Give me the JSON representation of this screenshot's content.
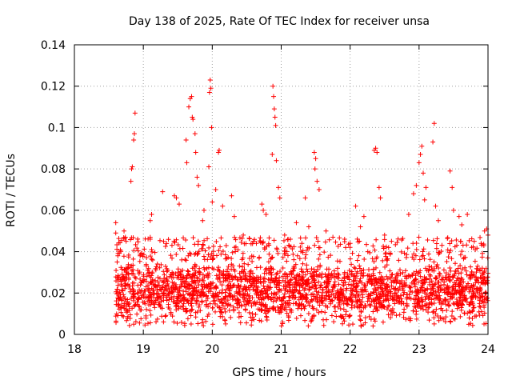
{
  "chart_data": {
    "type": "scatter",
    "title": "Day 138 of 2025, Rate Of TEC Index for receiver unsa",
    "xlabel": "GPS time / hours",
    "ylabel": "ROTI / TECUs",
    "xlim": [
      18,
      24
    ],
    "ylim": [
      0,
      0.14
    ],
    "x_ticks": [
      18,
      19,
      20,
      21,
      22,
      23,
      24
    ],
    "x_tick_labels": [
      "18",
      "19",
      "20",
      "21",
      "22",
      "23",
      "24"
    ],
    "y_ticks": [
      0,
      0.02,
      0.04,
      0.06,
      0.08,
      0.1,
      0.12,
      0.14
    ],
    "y_tick_labels": [
      "0",
      "0.02",
      "0.04",
      "0.06",
      "0.08",
      "0.1",
      "0.12",
      "0.14"
    ],
    "grid": true,
    "marker": "+",
    "color": "#ff0000",
    "series": [
      {
        "name": "ROTI",
        "approximate": true,
        "points": [
          [
            18.6,
            0.054
          ],
          [
            18.6,
            0.049
          ],
          [
            18.62,
            0.035
          ],
          [
            18.63,
            0.038
          ],
          [
            18.72,
            0.05
          ],
          [
            18.74,
            0.047
          ],
          [
            18.75,
            0.045
          ],
          [
            18.82,
            0.074
          ],
          [
            18.83,
            0.08
          ],
          [
            18.84,
            0.081
          ],
          [
            18.86,
            0.094
          ],
          [
            18.87,
            0.097
          ],
          [
            18.88,
            0.107
          ],
          [
            19.1,
            0.055
          ],
          [
            19.12,
            0.058
          ],
          [
            19.1,
            0.046
          ],
          [
            19.12,
            0.041
          ],
          [
            19.28,
            0.069
          ],
          [
            19.45,
            0.067
          ],
          [
            19.48,
            0.066
          ],
          [
            19.52,
            0.063
          ],
          [
            19.62,
            0.094
          ],
          [
            19.63,
            0.083
          ],
          [
            19.66,
            0.11
          ],
          [
            19.68,
            0.114
          ],
          [
            19.7,
            0.115
          ],
          [
            19.71,
            0.105
          ],
          [
            19.72,
            0.104
          ],
          [
            19.75,
            0.097
          ],
          [
            19.76,
            0.088
          ],
          [
            19.78,
            0.076
          ],
          [
            19.8,
            0.072
          ],
          [
            19.86,
            0.055
          ],
          [
            19.88,
            0.06
          ],
          [
            19.95,
            0.081
          ],
          [
            19.96,
            0.117
          ],
          [
            19.97,
            0.123
          ],
          [
            19.98,
            0.119
          ],
          [
            19.99,
            0.1
          ],
          [
            20.0,
            0.064
          ],
          [
            20.05,
            0.07
          ],
          [
            20.09,
            0.088
          ],
          [
            20.1,
            0.089
          ],
          [
            20.15,
            0.062
          ],
          [
            20.28,
            0.067
          ],
          [
            20.32,
            0.057
          ],
          [
            20.45,
            0.048
          ],
          [
            20.6,
            0.045
          ],
          [
            20.72,
            0.063
          ],
          [
            20.74,
            0.06
          ],
          [
            20.78,
            0.058
          ],
          [
            20.87,
            0.087
          ],
          [
            20.88,
            0.12
          ],
          [
            20.89,
            0.115
          ],
          [
            20.9,
            0.109
          ],
          [
            20.91,
            0.105
          ],
          [
            20.92,
            0.101
          ],
          [
            20.93,
            0.084
          ],
          [
            20.96,
            0.071
          ],
          [
            20.98,
            0.066
          ],
          [
            21.05,
            0.048
          ],
          [
            21.1,
            0.046
          ],
          [
            21.22,
            0.054
          ],
          [
            21.3,
            0.044
          ],
          [
            21.35,
            0.066
          ],
          [
            21.4,
            0.052
          ],
          [
            21.48,
            0.088
          ],
          [
            21.49,
            0.08
          ],
          [
            21.5,
            0.085
          ],
          [
            21.52,
            0.074
          ],
          [
            21.55,
            0.07
          ],
          [
            21.65,
            0.05
          ],
          [
            21.75,
            0.047
          ],
          [
            21.92,
            0.046
          ],
          [
            22.0,
            0.044
          ],
          [
            22.08,
            0.062
          ],
          [
            22.15,
            0.052
          ],
          [
            22.2,
            0.057
          ],
          [
            22.35,
            0.089
          ],
          [
            22.37,
            0.09
          ],
          [
            22.39,
            0.088
          ],
          [
            22.42,
            0.071
          ],
          [
            22.44,
            0.066
          ],
          [
            22.5,
            0.048
          ],
          [
            22.6,
            0.045
          ],
          [
            22.85,
            0.058
          ],
          [
            22.92,
            0.068
          ],
          [
            22.96,
            0.072
          ],
          [
            23.0,
            0.083
          ],
          [
            23.02,
            0.087
          ],
          [
            23.04,
            0.091
          ],
          [
            23.06,
            0.078
          ],
          [
            23.08,
            0.065
          ],
          [
            23.1,
            0.071
          ],
          [
            23.2,
            0.093
          ],
          [
            23.22,
            0.102
          ],
          [
            23.24,
            0.062
          ],
          [
            23.28,
            0.055
          ],
          [
            23.45,
            0.079
          ],
          [
            23.48,
            0.071
          ],
          [
            23.5,
            0.06
          ],
          [
            23.58,
            0.057
          ],
          [
            23.62,
            0.053
          ],
          [
            23.7,
            0.058
          ],
          [
            23.8,
            0.045
          ],
          [
            23.9,
            0.044
          ],
          [
            23.95,
            0.05
          ],
          [
            23.98,
            0.051
          ],
          [
            24.0,
            0.048
          ]
        ],
        "dense_band": {
          "description": "continuous cluster of samples",
          "x_range": [
            18.6,
            24.0
          ],
          "y_typical_range": [
            0.008,
            0.035
          ],
          "y_min": 0.004
        }
      }
    ]
  }
}
